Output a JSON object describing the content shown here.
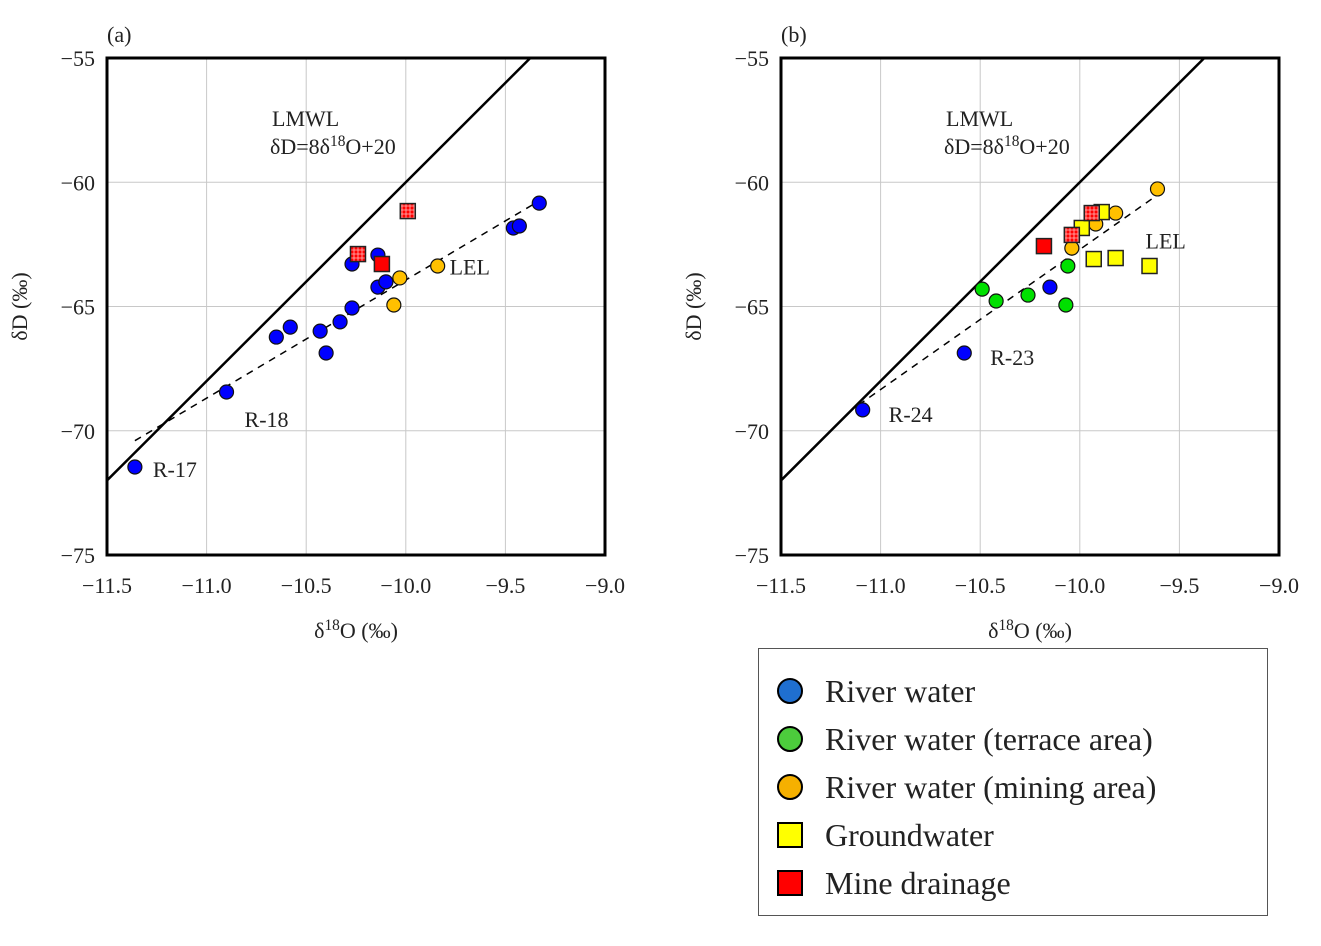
{
  "chart_data": [
    {
      "type": "scatter",
      "panel_label": "(a)",
      "xlabel": "δ18O (‰)",
      "ylabel": "δD (‰)",
      "xlim": [
        -11.5,
        -9.0
      ],
      "ylim": [
        -75,
        -55
      ],
      "xticks": [
        "−11.5",
        "−11.0",
        "−10.5",
        "−10.0",
        "−9.5",
        "−9.0"
      ],
      "yticks": [
        "−75",
        "−70",
        "−65",
        "−60",
        "−55"
      ],
      "grid": true,
      "lmwl": {
        "label": "LMWL",
        "equation": "δD=8δ18O+20",
        "slope": 8,
        "intercept": 20
      },
      "lel": {
        "label": "LEL",
        "from": [
          -11.36,
          -70.4
        ],
        "to": [
          -9.32,
          -60.7
        ]
      },
      "series": [
        {
          "category": "river",
          "points": [
            [
              -11.36,
              -71.46
            ],
            [
              -10.9,
              -68.44
            ],
            [
              -10.65,
              -66.23
            ],
            [
              -10.58,
              -65.83
            ],
            [
              -10.43,
              -65.99
            ],
            [
              -10.4,
              -66.87
            ],
            [
              -10.33,
              -65.62
            ],
            [
              -10.27,
              -65.06
            ],
            [
              -10.27,
              -63.29
            ],
            [
              -10.14,
              -62.93
            ],
            [
              -10.14,
              -64.22
            ],
            [
              -10.1,
              -64.01
            ],
            [
              -9.46,
              -61.84
            ],
            [
              -9.43,
              -61.76
            ],
            [
              -9.33,
              -60.84
            ]
          ]
        },
        {
          "category": "mining",
          "points": [
            [
              -10.03,
              -63.85
            ],
            [
              -10.06,
              -64.94
            ],
            [
              -9.84,
              -63.37
            ]
          ]
        },
        {
          "category": "mine",
          "points": [
            [
              -10.24,
              -62.89
            ],
            [
              -10.12,
              -63.29
            ],
            [
              -9.99,
              -61.16
            ]
          ]
        }
      ],
      "annotations": [
        {
          "text": "R-17",
          "at": [
            -11.36,
            -71.46
          ]
        },
        {
          "text": "R-18",
          "at": [
            -10.9,
            -68.44
          ]
        }
      ]
    },
    {
      "type": "scatter",
      "panel_label": "(b)",
      "xlabel": "δ18O (‰)",
      "ylabel": "δD (‰)",
      "xlim": [
        -11.5,
        -9.0
      ],
      "ylim": [
        -75,
        -55
      ],
      "xticks": [
        "−11.5",
        "−11.0",
        "−10.5",
        "−10.0",
        "−9.5",
        "−9.0"
      ],
      "yticks": [
        "−75",
        "−70",
        "−65",
        "−60",
        "−55"
      ],
      "grid": true,
      "lmwl": {
        "label": "LMWL",
        "equation": "δD=8δ18O+20",
        "slope": 8,
        "intercept": 20
      },
      "lel": {
        "label": "LEL",
        "from": [
          -11.11,
          -68.96
        ],
        "to": [
          -9.61,
          -60.51
        ]
      },
      "series": [
        {
          "category": "river",
          "points": [
            [
              -11.09,
              -69.16
            ],
            [
              -10.58,
              -66.87
            ],
            [
              -10.15,
              -64.22
            ]
          ]
        },
        {
          "category": "terrace",
          "points": [
            [
              -10.49,
              -64.3
            ],
            [
              -10.42,
              -64.78
            ],
            [
              -10.26,
              -64.54
            ],
            [
              -10.07,
              -64.94
            ],
            [
              -10.06,
              -63.37
            ]
          ]
        },
        {
          "category": "mining",
          "points": [
            [
              -9.61,
              -60.27
            ],
            [
              -9.82,
              -61.24
            ],
            [
              -9.92,
              -61.68
            ],
            [
              -10.04,
              -62.65
            ]
          ]
        },
        {
          "category": "ground",
          "points": [
            [
              -9.99,
              -61.84
            ],
            [
              -9.89,
              -61.2
            ],
            [
              -9.93,
              -63.09
            ],
            [
              -9.82,
              -63.05
            ],
            [
              -9.65,
              -63.37
            ]
          ]
        },
        {
          "category": "mine",
          "points": [
            [
              -10.18,
              -62.57
            ],
            [
              -10.04,
              -62.12
            ],
            [
              -9.94,
              -61.24
            ]
          ]
        }
      ],
      "annotations": [
        {
          "text": "R-24",
          "at": [
            -11.09,
            -69.16
          ]
        },
        {
          "text": "R-23",
          "at": [
            -10.58,
            -66.87
          ]
        }
      ]
    }
  ],
  "legend": {
    "placement": "bottom-right",
    "items": [
      {
        "key": "river",
        "label": "River water",
        "color": "#1f6fd0",
        "shape": "circle"
      },
      {
        "key": "terrace",
        "label": "River water (terrace area)",
        "color": "#4ccc3c",
        "shape": "circle"
      },
      {
        "key": "mining",
        "label": "River water (mining area)",
        "color": "#f5b000",
        "shape": "circle"
      },
      {
        "key": "ground",
        "label": "Groundwater",
        "color": "#ffff00",
        "shape": "square"
      },
      {
        "key": "mine",
        "label": "Mine drainage",
        "color": "#ff0000",
        "shape": "square"
      }
    ]
  },
  "marker_colors": {
    "river": "#0000ff",
    "terrace": "#00e000",
    "mining": "#ffc000",
    "ground": "#ffff00",
    "mine": "#ff0000"
  }
}
